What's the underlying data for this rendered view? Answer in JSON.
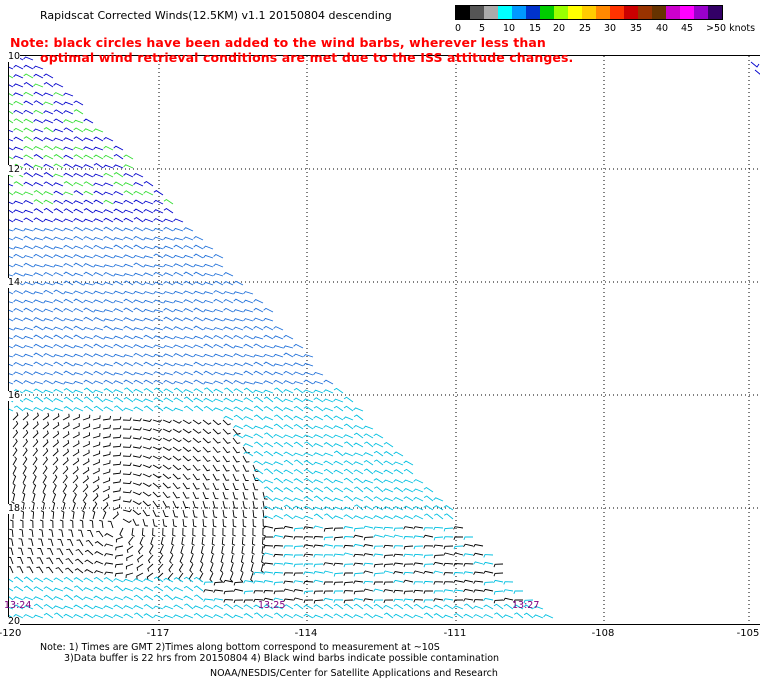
{
  "title": "Rapidscat Corrected Winds(12.5KM) v1.1 20150804 descending",
  "note": {
    "line1": "Note: black circles have been added to the wind barbs, wherever less than",
    "line2": "optimal wind retrieval conditions are met due to the ISS attitude changes."
  },
  "legend": {
    "labels": [
      "0",
      "5",
      "10",
      "15",
      "20",
      "25",
      "30",
      "35",
      "40",
      "45",
      ">50 knots"
    ],
    "colors": [
      "#000000",
      "#555555",
      "#aaaaaa",
      "#00ffff",
      "#0099ff",
      "#0033cc",
      "#00cc00",
      "#99ff00",
      "#ffff00",
      "#ffcc00",
      "#ff8800",
      "#ff3300",
      "#cc0000",
      "#993300",
      "#663300",
      "#cc00cc",
      "#ff00ff",
      "#9900cc",
      "#330066"
    ]
  },
  "latitudes": [
    "10",
    "12",
    "14",
    "16",
    "18",
    "20"
  ],
  "longitudes": [
    "-120",
    "-117",
    "-114",
    "-111",
    "-108",
    "-105"
  ],
  "times": [
    "13:24",
    "13:25",
    "13:27"
  ],
  "footer": {
    "line1": "Note: 1) Times are GMT 2)Times along bottom correspond to measurement at ~10S",
    "line2": "3)Data buffer is 22 hrs from 20150804 4) Black wind barbs indicate possible contamination",
    "line3": "NOAA/NESDIS/Center for Satellite Applications and Research"
  },
  "wind_colors": {
    "strong": "#0000cc",
    "moderate": "#1e6fd9",
    "light": "#00bfe0",
    "calm": "#000000",
    "gust": "#33dd33"
  }
}
